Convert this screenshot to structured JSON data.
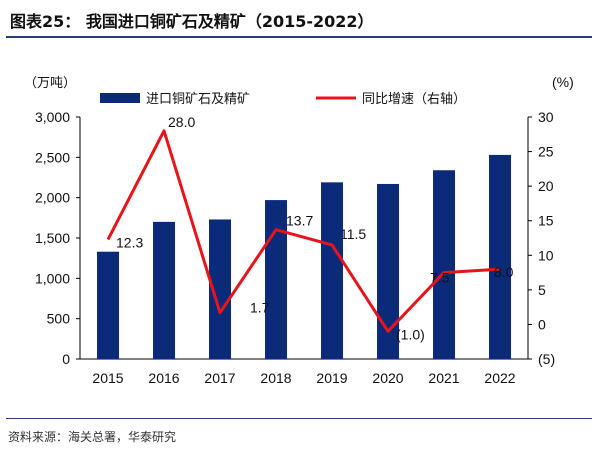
{
  "header": {
    "title": "图表25： 我国进口铜矿石及精矿（2015-2022）"
  },
  "footer": {
    "source": "资料来源：海关总署，华泰研究"
  },
  "chart_data": {
    "type": "bar",
    "categories": [
      "2015",
      "2016",
      "2017",
      "2018",
      "2019",
      "2020",
      "2021",
      "2022"
    ],
    "series": [
      {
        "name": "进口铜矿石及精矿",
        "type": "bar",
        "axis": "left",
        "color": "#0b2b7a",
        "values": [
          1330,
          1700,
          1730,
          1970,
          2190,
          2170,
          2340,
          2530
        ]
      },
      {
        "name": "同比增速（右轴）",
        "type": "line",
        "axis": "right",
        "color": "#e8141b",
        "values": [
          12.3,
          28.0,
          1.7,
          13.7,
          11.5,
          -1.0,
          7.5,
          8.0
        ],
        "labels": [
          "12.3",
          "28.0",
          "1.7",
          "13.7",
          "11.5",
          "(1.0)",
          "7.5",
          "8.0"
        ]
      }
    ],
    "left_axis": {
      "unit_label": "（万吨）",
      "ylim": [
        0,
        3000
      ],
      "ticks": [
        0,
        500,
        1000,
        1500,
        2000,
        2500,
        3000
      ],
      "tick_labels": [
        "0",
        "500",
        "1,000",
        "1,500",
        "2,000",
        "2,500",
        "3,000"
      ]
    },
    "right_axis": {
      "unit_label": "(%)",
      "ylim": [
        -5,
        30
      ],
      "ticks": [
        -5,
        0,
        5,
        10,
        15,
        20,
        25,
        30
      ],
      "tick_labels": [
        "(5)",
        "0",
        "5",
        "10",
        "15",
        "20",
        "25",
        "30"
      ]
    },
    "legend_position": "top",
    "grid": false
  }
}
